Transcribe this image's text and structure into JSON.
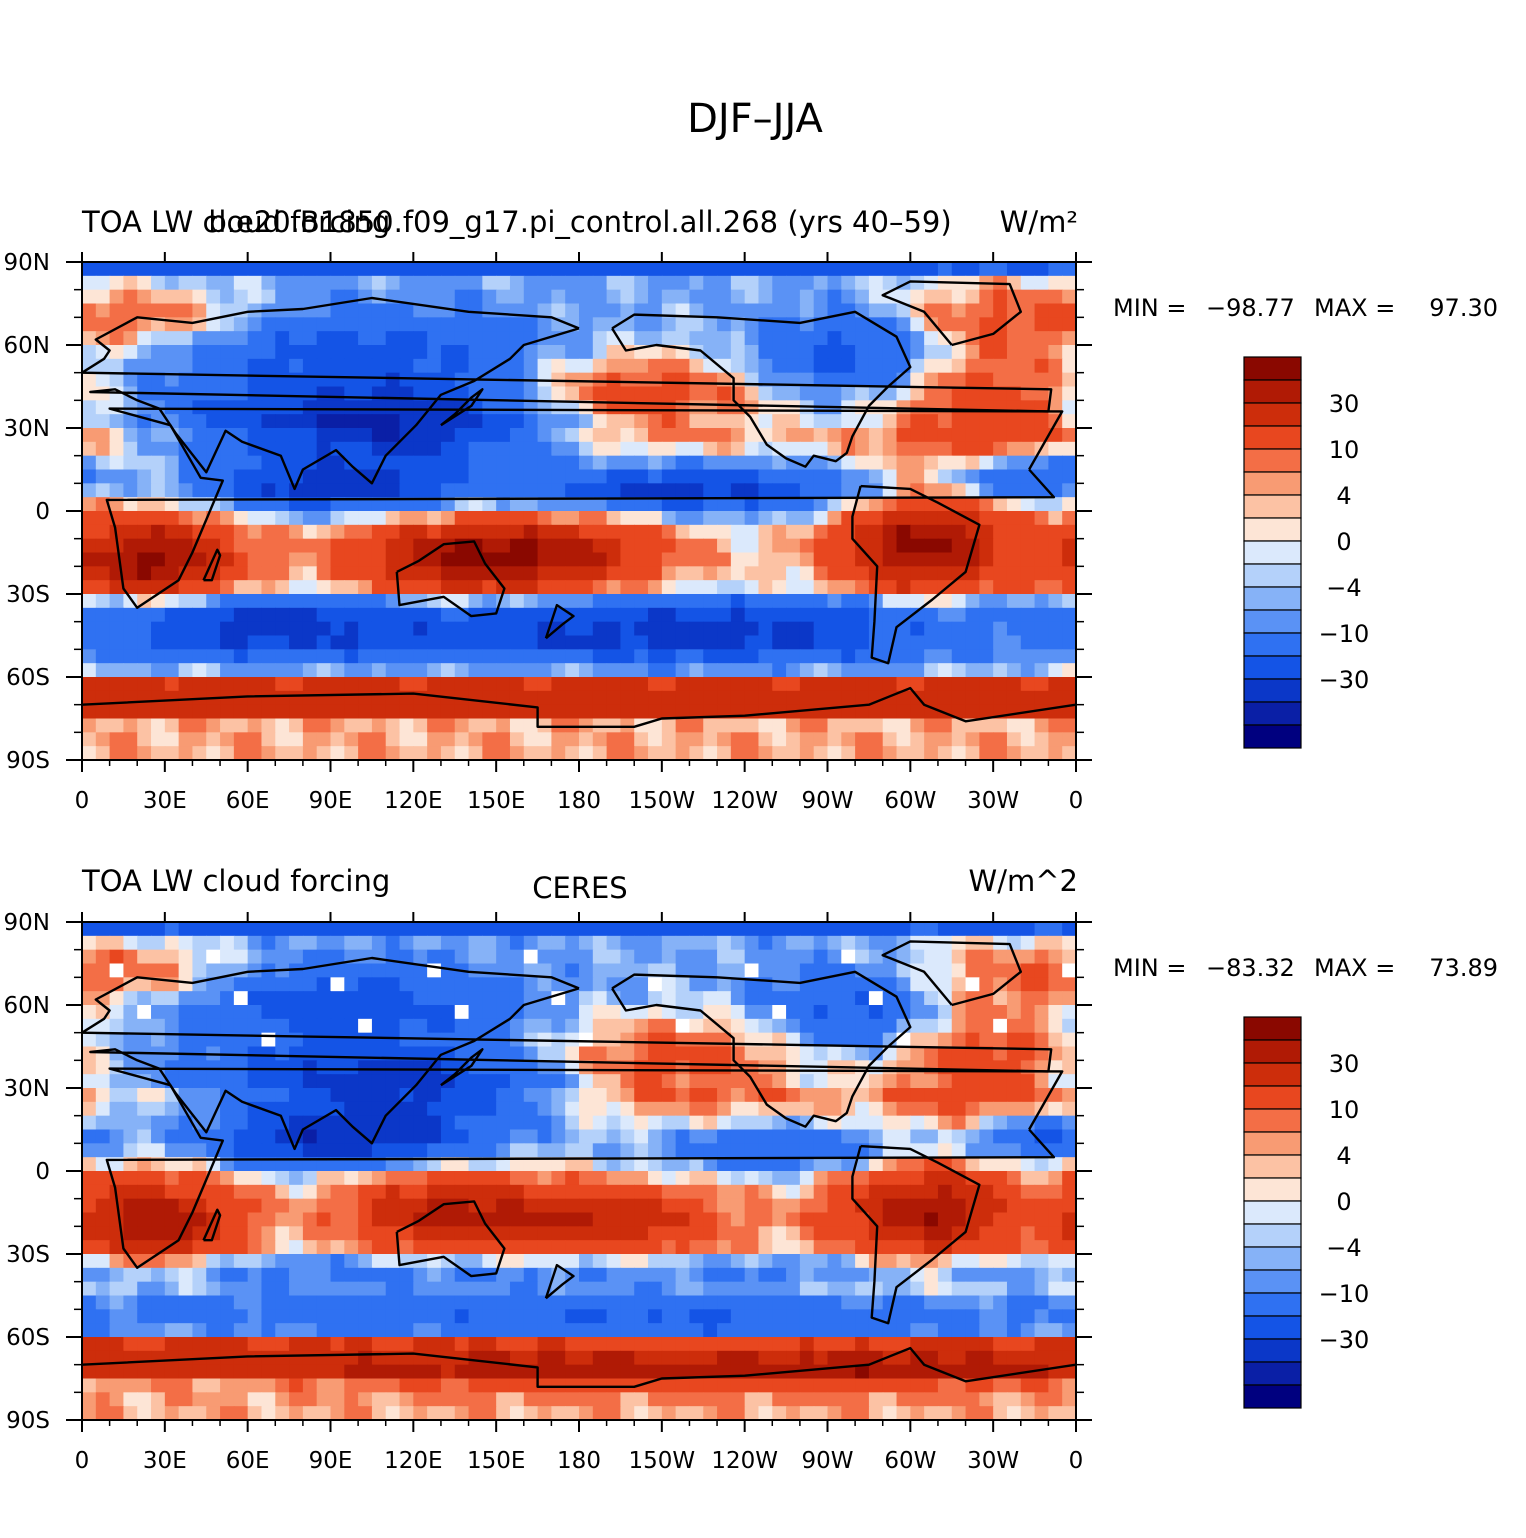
{
  "title": "DJF–JJA",
  "colors": {
    "levels": [
      "#00007f",
      "#0a1fa6",
      "#0b37c8",
      "#1454e6",
      "#2f71f2",
      "#5a92f5",
      "#86b2f7",
      "#b4d1fa",
      "#dbe9fc",
      "#fde5d6",
      "#fcc2a4",
      "#f89b73",
      "#f36e46",
      "#e8471f",
      "#cd2d0b",
      "#b01a05",
      "#8a0800"
    ],
    "line": "#000000",
    "missing": "#ffffff"
  },
  "panels": [
    {
      "left_text": "TOA LW cloud forcing",
      "center_text": "b.e20.B1850.f09_g17.pi_control.all.268 (yrs 40–59)",
      "right_text": "W/m²",
      "min_label": "MIN =",
      "min_value": "−98.77",
      "max_label": "MAX =",
      "max_value": "97.30"
    },
    {
      "left_text": "TOA LW cloud forcing",
      "center_text": "CERES",
      "right_text": "W/m^2",
      "min_label": "MIN =",
      "min_value": "−83.32",
      "max_label": "MAX =",
      "max_value": "73.89"
    }
  ],
  "chart_data": [
    {
      "type": "heatmap",
      "title": "b.e20.B1850.f09_g17.pi_control.all.268 (yrs 40–59)",
      "variable": "TOA LW cloud forcing",
      "units": "W/m²",
      "season_difference": "DJF–JJA",
      "min": -98.77,
      "max": 97.3,
      "x_ticks": [
        "0",
        "30E",
        "60E",
        "90E",
        "120E",
        "150E",
        "180",
        "150W",
        "120W",
        "90W",
        "60W",
        "30W",
        "0"
      ],
      "y_ticks": [
        "90N",
        "60N",
        "30N",
        "0",
        "30S",
        "60S",
        "90S"
      ],
      "xlim": [
        0,
        360
      ],
      "ylim": [
        -90,
        90
      ],
      "colorbar_labels": [
        "30",
        "10",
        "4",
        "0",
        "−4",
        "−10",
        "−30"
      ]
    },
    {
      "type": "heatmap",
      "title": "CERES",
      "variable": "TOA LW cloud forcing",
      "units": "W/m^2",
      "season_difference": "DJF–JJA",
      "min": -83.32,
      "max": 73.89,
      "x_ticks": [
        "0",
        "30E",
        "60E",
        "90E",
        "120E",
        "150E",
        "180",
        "150W",
        "120W",
        "90W",
        "60W",
        "30W",
        "0"
      ],
      "y_ticks": [
        "90N",
        "60N",
        "30N",
        "0",
        "30S",
        "60S",
        "90S"
      ],
      "xlim": [
        0,
        360
      ],
      "ylim": [
        -90,
        90
      ],
      "colorbar_labels": [
        "30",
        "10",
        "4",
        "0",
        "−4",
        "−10",
        "−30"
      ]
    }
  ]
}
